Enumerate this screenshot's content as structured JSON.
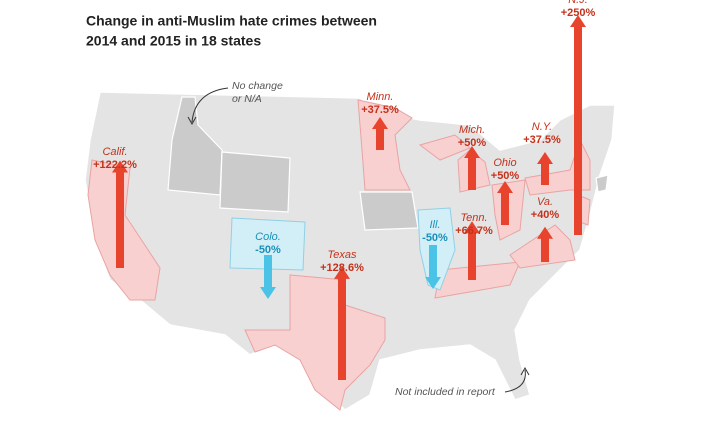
{
  "header": {
    "title_lines": [
      "Change in anti-Muslim hate crimes between",
      "2014 and 2015 in 18 states"
    ]
  },
  "annotations": {
    "no_change": [
      "No change",
      "or N/A"
    ],
    "not_included": "Not included in report"
  },
  "states": [
    {
      "name": "Calif.",
      "value": 122.2,
      "value_label": "+122.2%"
    },
    {
      "name": "Colo.",
      "value": -50,
      "value_label": "-50%"
    },
    {
      "name": "Texas",
      "value": 128.6,
      "value_label": "+128.6%"
    },
    {
      "name": "Minn.",
      "value": 37.5,
      "value_label": "+37.5%"
    },
    {
      "name": "Ill.",
      "value": -50,
      "value_label": "-50%"
    },
    {
      "name": "Mich.",
      "value": 50,
      "value_label": "+50%"
    },
    {
      "name": "Tenn.",
      "value": 66.7,
      "value_label": "+66.7%"
    },
    {
      "name": "Ohio",
      "value": 50,
      "value_label": "+50%"
    },
    {
      "name": "N.Y.",
      "value": 37.5,
      "value_label": "+37.5%"
    },
    {
      "name": "Va.",
      "value": 40,
      "value_label": "+40%"
    },
    {
      "name": "N.J.",
      "value": 250,
      "value_label": "+250%"
    }
  ]
}
